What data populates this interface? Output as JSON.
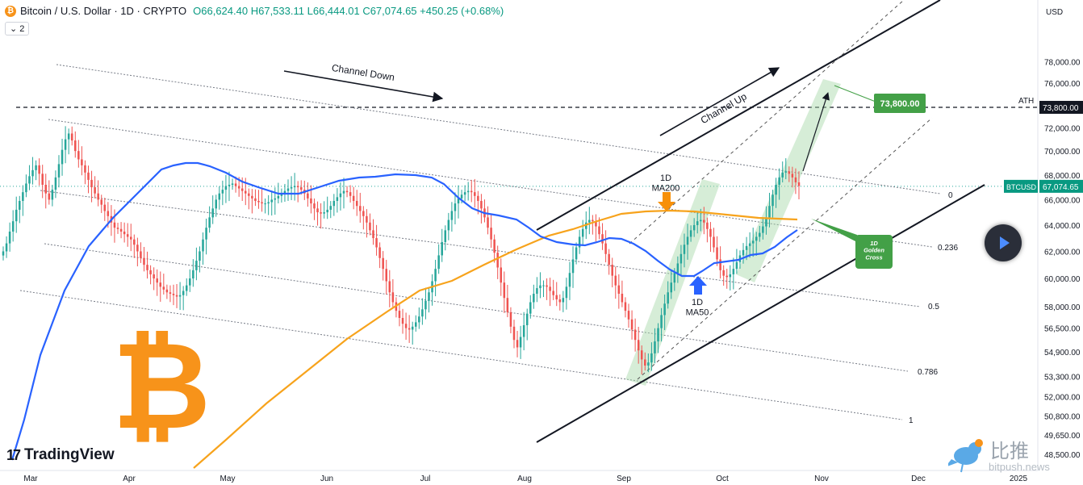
{
  "header": {
    "symbol": "Bitcoin / U.S. Dollar · 1D · CRYPTO",
    "open": "O66,624.40",
    "high": "H67,533.11",
    "low": "L66,444.01",
    "close": "C67,074.65",
    "change": "+450.25 (+0.68%)",
    "indicator_badge": "2"
  },
  "brand": {
    "logo_text": "TradingView",
    "watermark_cn": "比推",
    "watermark_url": "bitpush.news"
  },
  "colors": {
    "up_candle": "#26a69a",
    "down_candle": "#ef5350",
    "ma50": "#2962ff",
    "ma200": "#f7a31c",
    "green_zone": "#a5d6a7",
    "label_green": "#43a047",
    "bitcoin_orange": "#f7931a"
  },
  "chart_data": {
    "type": "candlestick",
    "currency_label": "USD",
    "x_axis": {
      "ticks": [
        "Mar",
        "Apr",
        "May",
        "Jun",
        "Jul",
        "Aug",
        "Sep",
        "Oct",
        "Nov",
        "Dec",
        "2025"
      ]
    },
    "y_axis": {
      "scale": "log",
      "range": [
        48500,
        80500
      ],
      "ticks": [
        "78,000.00",
        "76,000.00",
        "72,000.00",
        "70,000.00",
        "68,000.00",
        "66,000.00",
        "64,000.00",
        "62,000.00",
        "60,000.00",
        "58,000.00",
        "56,500.00",
        "54,900.00",
        "53,300.00",
        "52,000.00",
        "50,800.00",
        "49,650.00",
        "48,500.00"
      ]
    },
    "price_tags": [
      {
        "label": "73,800.00",
        "value": 73800,
        "style": "dark"
      },
      {
        "label": "BTCUSD",
        "value": 67074.65,
        "style": "symbol"
      },
      {
        "label": "67,074.65",
        "value": 67074.65,
        "style": "current"
      }
    ],
    "ath": {
      "label": "ATH",
      "value": 73800
    },
    "candles_close": [
      62000,
      62600,
      63500,
      64300,
      65200,
      65900,
      66600,
      67300,
      67900,
      68400,
      68800,
      68100,
      67200,
      66500,
      66000,
      66800,
      67800,
      68900,
      70100,
      71000,
      71500,
      70900,
      70000,
      69300,
      68800,
      68200,
      67600,
      67000,
      66500,
      66000,
      65600,
      65100,
      64700,
      64200,
      63800,
      63700,
      63500,
      63300,
      63100,
      62900,
      62500,
      62000,
      61500,
      61000,
      60600,
      60300,
      60000,
      59700,
      59400,
      59200,
      59000,
      58900,
      58800,
      58700,
      58800,
      59100,
      59500,
      60000,
      60600,
      61300,
      62000,
      62900,
      63800,
      64600,
      65300,
      66000,
      66500,
      66800,
      67100,
      67200,
      67300,
      67100,
      66900,
      66700,
      66500,
      66300,
      66100,
      65900,
      65800,
      65700,
      65700,
      65800,
      66000,
      66100,
      66300,
      66500,
      66700,
      66900,
      67000,
      67100,
      67000,
      66800,
      66500,
      66100,
      65700,
      65300,
      65000,
      64900,
      65000,
      65200,
      65500,
      65900,
      66200,
      66500,
      66700,
      66600,
      66300,
      65900,
      65500,
      65100,
      64700,
      64200,
      63600,
      63000,
      62300,
      61500,
      60700,
      59800,
      59000,
      58300,
      57700,
      57200,
      56800,
      56500,
      56400,
      56600,
      56900,
      57300,
      57800,
      58400,
      59000,
      59800,
      60700,
      61700,
      62700,
      63600,
      64400,
      65100,
      65700,
      66100,
      66400,
      66600,
      66700,
      66600,
      66300,
      65900,
      65300,
      64600,
      63800,
      62900,
      61900,
      60800,
      59700,
      58600,
      57600,
      56600,
      55700,
      55200,
      55900,
      56700,
      57500,
      58300,
      58900,
      59300,
      59500,
      59500,
      59400,
      59100,
      58800,
      58500,
      58300,
      58600,
      59400,
      60400,
      61400,
      62300,
      63100,
      63700,
      64200,
      64400,
      64300,
      63900,
      63300,
      62600,
      61800,
      61000,
      60200,
      59500,
      58900,
      58300,
      57700,
      57100,
      56400,
      55700,
      55000,
      54400,
      54000,
      54200,
      54800,
      55600,
      56500,
      57400,
      58200,
      59000,
      59700,
      60400,
      61100,
      61800,
      62500,
      63100,
      63600,
      64000,
      64300,
      64400,
      64200,
      63700,
      63100,
      62300,
      61400,
      60600,
      60200,
      60100,
      60300,
      60700,
      61200,
      61700,
      62100,
      62400,
      62600,
      62800,
      63100,
      63400,
      63900,
      64600,
      65500,
      66400,
      67200,
      67800,
      68200,
      68300,
      68100,
      67800,
      67400,
      67100
    ],
    "ma50_path": [
      [
        15,
        570
      ],
      [
        30,
        520
      ],
      [
        50,
        440
      ],
      [
        80,
        360
      ],
      [
        110,
        305
      ],
      [
        140,
        270
      ],
      [
        170,
        240
      ],
      [
        200,
        210
      ],
      [
        215,
        205
      ],
      [
        230,
        202
      ],
      [
        245,
        202
      ],
      [
        260,
        206
      ],
      [
        280,
        214
      ],
      [
        300,
        225
      ],
      [
        320,
        232
      ],
      [
        345,
        240
      ],
      [
        370,
        240
      ],
      [
        395,
        232
      ],
      [
        420,
        224
      ],
      [
        445,
        220
      ],
      [
        465,
        219
      ],
      [
        490,
        216
      ],
      [
        515,
        217
      ],
      [
        535,
        220
      ],
      [
        550,
        228
      ],
      [
        568,
        245
      ],
      [
        585,
        258
      ],
      [
        600,
        264
      ],
      [
        618,
        267
      ],
      [
        640,
        272
      ],
      [
        655,
        282
      ],
      [
        670,
        293
      ],
      [
        690,
        300
      ],
      [
        710,
        303
      ],
      [
        725,
        304
      ],
      [
        740,
        300
      ],
      [
        755,
        295
      ],
      [
        770,
        296
      ],
      [
        785,
        302
      ],
      [
        800,
        311
      ],
      [
        815,
        323
      ],
      [
        830,
        334
      ],
      [
        845,
        342
      ],
      [
        860,
        342
      ],
      [
        870,
        336
      ],
      [
        885,
        326
      ],
      [
        900,
        324
      ],
      [
        915,
        322
      ],
      [
        930,
        316
      ],
      [
        945,
        314
      ],
      [
        960,
        306
      ],
      [
        975,
        294
      ],
      [
        988,
        285
      ]
    ],
    "ma200_path": [
      [
        240,
        580
      ],
      [
        280,
        545
      ],
      [
        330,
        500
      ],
      [
        380,
        460
      ],
      [
        430,
        420
      ],
      [
        480,
        386
      ],
      [
        520,
        360
      ],
      [
        560,
        348
      ],
      [
        600,
        328
      ],
      [
        640,
        309
      ],
      [
        680,
        292
      ],
      [
        710,
        284
      ],
      [
        740,
        274
      ],
      [
        770,
        265
      ],
      [
        800,
        262
      ],
      [
        830,
        261
      ],
      [
        860,
        262
      ],
      [
        900,
        266
      ],
      [
        940,
        270
      ],
      [
        988,
        272
      ]
    ],
    "fib_levels": [
      {
        "label": "0",
        "value": 0
      },
      {
        "label": "0.236",
        "value": 0.236
      },
      {
        "label": "0.5",
        "value": 0.5
      },
      {
        "label": "0.786",
        "value": 0.786
      },
      {
        "label": "1",
        "value": 1
      }
    ],
    "annotations": [
      {
        "text": "Channel Down"
      },
      {
        "text": "Channel Up"
      },
      {
        "text": "1D\nMA200"
      },
      {
        "text": "1D\nMA50"
      },
      {
        "text": "73,800.00"
      },
      {
        "text": "1D\nGolden\nCross"
      }
    ],
    "legend": "none",
    "grid": false
  }
}
